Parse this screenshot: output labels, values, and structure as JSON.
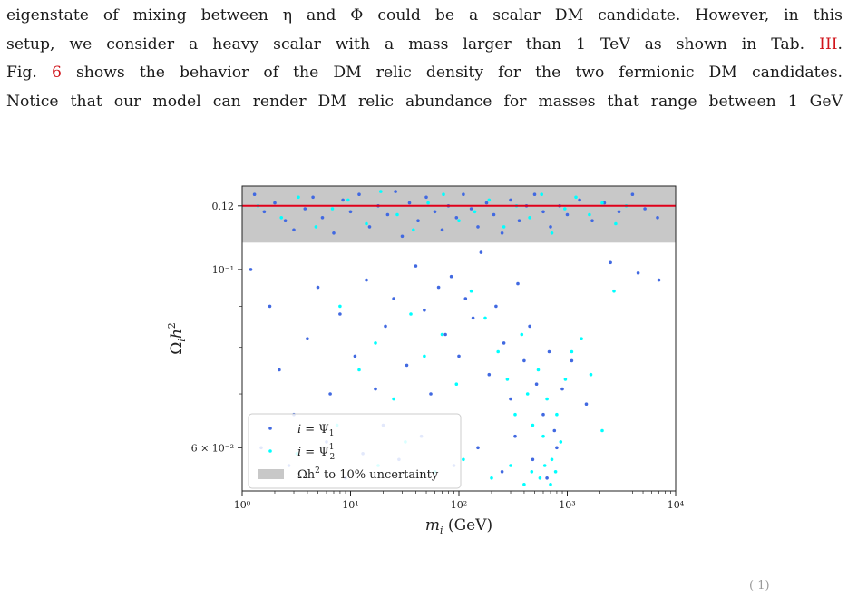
{
  "text": {
    "line1": "eigenstate of mixing between η and Φ could be a scalar DM candidate. However, in this",
    "line2_a": "setup, we consider a heavy scalar with a mass larger than 1 TeV as shown in Tab.",
    "line2_ref": "III",
    "line2_b": ".",
    "line3_a": "Fig.",
    "line3_ref": "6",
    "line3_b": "shows the behavior of the DM relic density for the two fermionic DM candidates.",
    "line4": "Notice that our model can render DM relic abundance for masses that range between 1 GeV",
    "page_fragment": "( 1)"
  },
  "colors": {
    "series1": "#4169e1",
    "series2": "#00ffff",
    "band": "#c8c8c8",
    "reference_line": "#e0001a",
    "ref_link": "#d0141b"
  },
  "chart_data": {
    "type": "scatter",
    "xlabel": "m_i (GeV)",
    "ylabel": "Ω_i h²",
    "xscale": "log",
    "yscale": "log",
    "xlim": [
      1,
      10000
    ],
    "ylim": [
      0.053,
      0.127
    ],
    "x_ticks": [
      1,
      10,
      100,
      1000,
      10000
    ],
    "x_tick_labels": [
      "10⁰",
      "10¹",
      "10²",
      "10³",
      "10⁴"
    ],
    "y_ticks": [
      0.12,
      0.1,
      0.06
    ],
    "y_tick_labels": [
      "0.12",
      "10⁻¹",
      "6 × 10⁻²"
    ],
    "reference_line": {
      "y": 0.12,
      "color": "#e0001a"
    },
    "band": {
      "y_min": 0.108,
      "y_max": 0.127,
      "label": "Ωh² to 10% uncertainty"
    },
    "legend_position": "lower-left",
    "series": [
      {
        "name": "i = Ψ₁",
        "color": "#4169e1",
        "points": [
          [
            1.3,
            0.124
          ],
          [
            1.6,
            0.118
          ],
          [
            2.0,
            0.121
          ],
          [
            2.5,
            0.115
          ],
          [
            3.0,
            0.112
          ],
          [
            3.8,
            0.119
          ],
          [
            4.5,
            0.123
          ],
          [
            5.5,
            0.116
          ],
          [
            7.0,
            0.111
          ],
          [
            8.5,
            0.122
          ],
          [
            10,
            0.118
          ],
          [
            12,
            0.124
          ],
          [
            15,
            0.113
          ],
          [
            18,
            0.12
          ],
          [
            22,
            0.117
          ],
          [
            26,
            0.125
          ],
          [
            30,
            0.11
          ],
          [
            35,
            0.121
          ],
          [
            42,
            0.115
          ],
          [
            50,
            0.123
          ],
          [
            60,
            0.118
          ],
          [
            70,
            0.112
          ],
          [
            80,
            0.12
          ],
          [
            95,
            0.116
          ],
          [
            110,
            0.124
          ],
          [
            130,
            0.119
          ],
          [
            150,
            0.113
          ],
          [
            180,
            0.121
          ],
          [
            210,
            0.117
          ],
          [
            250,
            0.111
          ],
          [
            300,
            0.122
          ],
          [
            360,
            0.115
          ],
          [
            420,
            0.12
          ],
          [
            500,
            0.124
          ],
          [
            600,
            0.118
          ],
          [
            700,
            0.113
          ],
          [
            850,
            0.12
          ],
          [
            1000,
            0.117
          ],
          [
            1300,
            0.122
          ],
          [
            1700,
            0.115
          ],
          [
            2200,
            0.121
          ],
          [
            3000,
            0.118
          ],
          [
            4000,
            0.124
          ],
          [
            5200,
            0.119
          ],
          [
            6800,
            0.116
          ],
          [
            1.2,
            0.1
          ],
          [
            1.8,
            0.09
          ],
          [
            2.2,
            0.075
          ],
          [
            3.0,
            0.066
          ],
          [
            4.0,
            0.082
          ],
          [
            5.0,
            0.095
          ],
          [
            6.5,
            0.07
          ],
          [
            8.0,
            0.088
          ],
          [
            11,
            0.078
          ],
          [
            14,
            0.097
          ],
          [
            17,
            0.071
          ],
          [
            21,
            0.085
          ],
          [
            25,
            0.092
          ],
          [
            33,
            0.076
          ],
          [
            40,
            0.101
          ],
          [
            48,
            0.089
          ],
          [
            55,
            0.07
          ],
          [
            65,
            0.095
          ],
          [
            75,
            0.083
          ],
          [
            85,
            0.098
          ],
          [
            100,
            0.078
          ],
          [
            115,
            0.092
          ],
          [
            135,
            0.087
          ],
          [
            160,
            0.105
          ],
          [
            190,
            0.074
          ],
          [
            220,
            0.09
          ],
          [
            260,
            0.081
          ],
          [
            300,
            0.069
          ],
          [
            350,
            0.096
          ],
          [
            400,
            0.077
          ],
          [
            450,
            0.085
          ],
          [
            520,
            0.072
          ],
          [
            600,
            0.066
          ],
          [
            680,
            0.079
          ],
          [
            760,
            0.063
          ],
          [
            900,
            0.071
          ],
          [
            1.5,
            0.06
          ],
          [
            2.7,
            0.057
          ],
          [
            6.0,
            0.061
          ],
          [
            9.0,
            0.055
          ],
          [
            13,
            0.059
          ],
          [
            20,
            0.064
          ],
          [
            28,
            0.058
          ],
          [
            45,
            0.062
          ],
          [
            90,
            0.057
          ],
          [
            150,
            0.06
          ],
          [
            250,
            0.056
          ],
          [
            330,
            0.062
          ],
          [
            480,
            0.058
          ],
          [
            650,
            0.055
          ],
          [
            800,
            0.06
          ],
          [
            1100,
            0.077
          ],
          [
            1500,
            0.068
          ],
          [
            2500,
            0.102
          ],
          [
            4500,
            0.099
          ],
          [
            7000,
            0.097
          ]
        ]
      },
      {
        "name": "i = Ψ₂¹",
        "color": "#00ffff",
        "points": [
          [
            1.4,
            0.12
          ],
          [
            2.3,
            0.116
          ],
          [
            3.3,
            0.123
          ],
          [
            4.8,
            0.113
          ],
          [
            6.8,
            0.119
          ],
          [
            9.5,
            0.122
          ],
          [
            14,
            0.114
          ],
          [
            19,
            0.125
          ],
          [
            27,
            0.117
          ],
          [
            38,
            0.112
          ],
          [
            52,
            0.121
          ],
          [
            72,
            0.124
          ],
          [
            100,
            0.115
          ],
          [
            140,
            0.118
          ],
          [
            190,
            0.122
          ],
          [
            260,
            0.113
          ],
          [
            340,
            0.12
          ],
          [
            450,
            0.116
          ],
          [
            580,
            0.124
          ],
          [
            720,
            0.111
          ],
          [
            950,
            0.119
          ],
          [
            1200,
            0.123
          ],
          [
            1600,
            0.117
          ],
          [
            2100,
            0.121
          ],
          [
            2800,
            0.114
          ],
          [
            3500,
            0.12
          ],
          [
            8.0,
            0.09
          ],
          [
            12,
            0.075
          ],
          [
            17,
            0.081
          ],
          [
            25,
            0.069
          ],
          [
            36,
            0.088
          ],
          [
            48,
            0.078
          ],
          [
            70,
            0.083
          ],
          [
            95,
            0.072
          ],
          [
            130,
            0.094
          ],
          [
            175,
            0.087
          ],
          [
            230,
            0.079
          ],
          [
            280,
            0.073
          ],
          [
            330,
            0.066
          ],
          [
            380,
            0.083
          ],
          [
            430,
            0.07
          ],
          [
            480,
            0.064
          ],
          [
            540,
            0.075
          ],
          [
            600,
            0.062
          ],
          [
            650,
            0.069
          ],
          [
            720,
            0.058
          ],
          [
            800,
            0.066
          ],
          [
            870,
            0.061
          ],
          [
            960,
            0.073
          ],
          [
            1100,
            0.079
          ],
          [
            1350,
            0.082
          ],
          [
            1650,
            0.074
          ],
          [
            3.2,
            0.059
          ],
          [
            7.5,
            0.064
          ],
          [
            18,
            0.057
          ],
          [
            32,
            0.061
          ],
          [
            60,
            0.056
          ],
          [
            110,
            0.058
          ],
          [
            200,
            0.055
          ],
          [
            300,
            0.057
          ],
          [
            400,
            0.054
          ],
          [
            470,
            0.056
          ],
          [
            560,
            0.055
          ],
          [
            620,
            0.057
          ],
          [
            700,
            0.054
          ],
          [
            780,
            0.056
          ],
          [
            2100,
            0.063
          ],
          [
            2700,
            0.094
          ]
        ]
      }
    ]
  }
}
